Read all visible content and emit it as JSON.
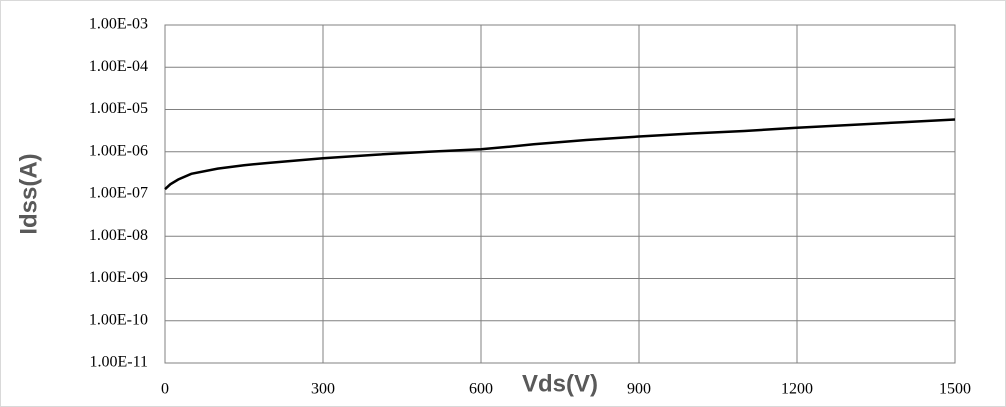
{
  "chart_data": {
    "type": "line",
    "x_label": "Vds(V)",
    "y_label": "Idss(A)",
    "log_y": true,
    "grid": true,
    "xlim": [
      0,
      1500
    ],
    "xticks": [
      0,
      300,
      600,
      900,
      1200,
      1500
    ],
    "ylim": [
      1e-11,
      0.001
    ],
    "yticks": [
      {
        "value": 1e-11,
        "label": "1.00E-11"
      },
      {
        "value": 1e-10,
        "label": "1.00E-10"
      },
      {
        "value": 1e-09,
        "label": "1.00E-09"
      },
      {
        "value": 1e-08,
        "label": "1.00E-08"
      },
      {
        "value": 1e-07,
        "label": "1.00E-07"
      },
      {
        "value": 1e-06,
        "label": "1.00E-06"
      },
      {
        "value": 1e-05,
        "label": "1.00E-05"
      },
      {
        "value": 0.0001,
        "label": "1.00E-04"
      },
      {
        "value": 0.001,
        "label": "1.00E-03"
      }
    ],
    "series": [
      {
        "color": "#000000",
        "x": [
          0,
          10,
          25,
          50,
          100,
          150,
          200,
          300,
          400,
          500,
          600,
          650,
          700,
          800,
          900,
          1000,
          1100,
          1200,
          1300,
          1400,
          1500
        ],
        "values": [
          1.3e-07,
          1.7e-07,
          2.2e-07,
          3e-07,
          4e-07,
          4.8e-07,
          5.5e-07,
          7e-07,
          8.5e-07,
          1e-06,
          1.15e-06,
          1.3e-06,
          1.5e-06,
          1.9e-06,
          2.3e-06,
          2.7e-06,
          3.1e-06,
          3.7e-06,
          4.3e-06,
          5e-06,
          5.8e-06
        ]
      }
    ]
  }
}
